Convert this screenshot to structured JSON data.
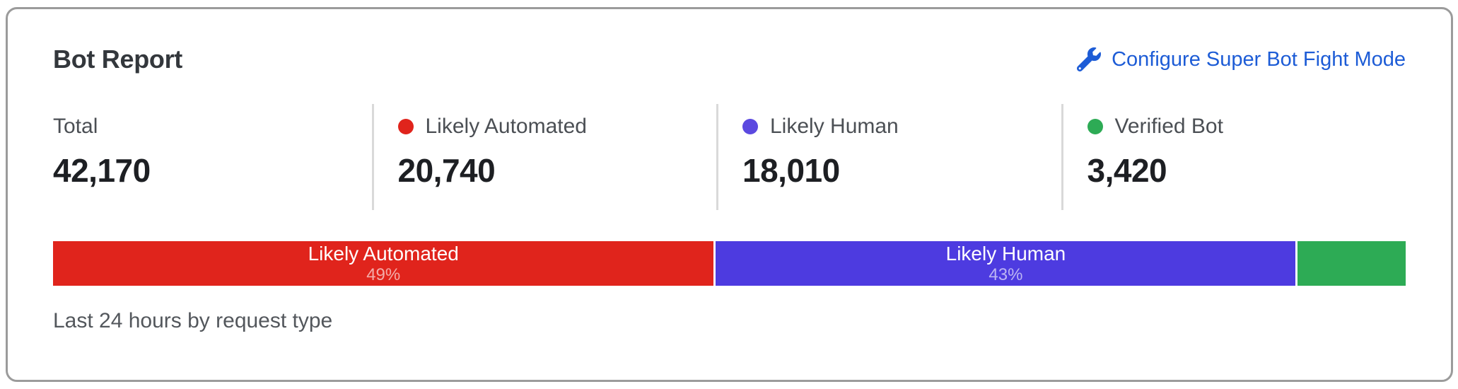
{
  "card": {
    "title": "Bot Report",
    "configure_link": {
      "label": "Configure Super Bot Fight Mode",
      "color": "#1d5cd6",
      "icon": "wrench-icon"
    },
    "stats": [
      {
        "label": "Total",
        "value": "42,170"
      },
      {
        "label": "Likely Automated",
        "value": "20,740",
        "dot_color": "#e0241c"
      },
      {
        "label": "Likely Human",
        "value": "18,010",
        "dot_color": "#5b49e0"
      },
      {
        "label": "Verified Bot",
        "value": "3,420",
        "dot_color": "#2dab55"
      }
    ],
    "footer": "Last 24 hours by request type"
  },
  "chart_data": {
    "type": "bar",
    "subtype": "stacked-horizontal-distribution",
    "title": "Bot Report",
    "caption": "Last 24 hours by request type",
    "total": 42170,
    "categories": [
      "Likely Automated",
      "Likely Human",
      "Verified Bot"
    ],
    "values": [
      20740,
      18010,
      3420
    ],
    "legend_position": "top-stats-row",
    "segments": [
      {
        "name": "Likely Automated",
        "value": 20740,
        "percent": 49,
        "percent_label": "49%",
        "color": "#e0241c",
        "label_visible": true
      },
      {
        "name": "Likely Human",
        "value": 18010,
        "percent": 43,
        "percent_label": "43%",
        "color": "#4d3be0",
        "label_visible": true
      },
      {
        "name": "Verified Bot",
        "value": 3420,
        "percent": 8,
        "percent_label": "8%",
        "color": "#2dab55",
        "label_visible": false
      }
    ]
  }
}
